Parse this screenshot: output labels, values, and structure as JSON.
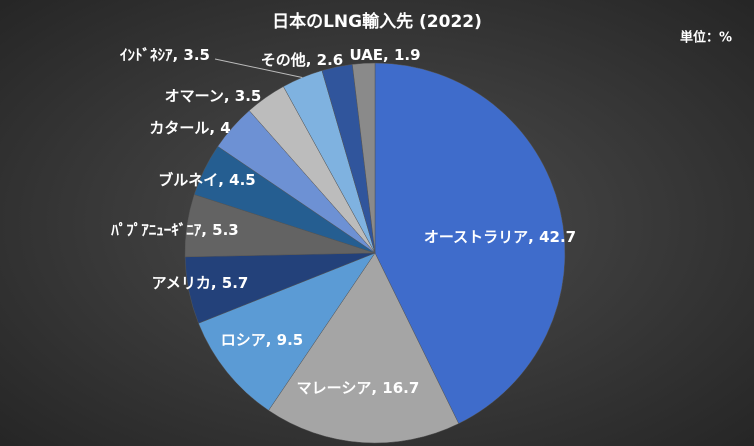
{
  "chart_data": {
    "type": "pie",
    "title": "日本のLNG輸入先 (2022)",
    "unit_label": "単位：%",
    "categories": [
      "オーストラリア",
      "マレーシア",
      "ロシア",
      "アメリカ",
      "ﾊﾟﾌﾟｱﾆｭｰｷﾞﾆｱ",
      "ブルネイ",
      "カタール",
      "オマーン",
      "ｲﾝﾄﾞﾈｼｱ",
      "その他",
      "UAE"
    ],
    "values": [
      42.7,
      16.7,
      9.5,
      5.7,
      5.3,
      4.5,
      4,
      3.5,
      3.5,
      2.6,
      1.9
    ],
    "colors": [
      "#3f6ccb",
      "#a5a5a5",
      "#5b9bd5",
      "#23417a",
      "#636363",
      "#255e91",
      "#6d91d4",
      "#bcbcbc",
      "#7fb2e0",
      "#30559c",
      "#8a8a8a"
    ]
  }
}
